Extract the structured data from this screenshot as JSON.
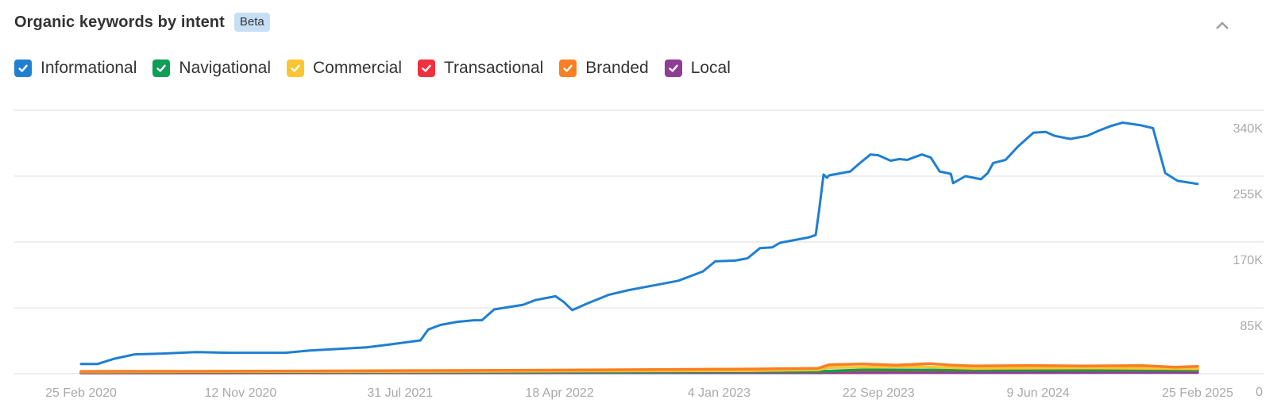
{
  "header": {
    "title": "Organic keywords by intent",
    "badge": "Beta",
    "collapse_icon": "chevron-up-icon"
  },
  "legend": [
    {
      "key": "informational",
      "label": "Informational",
      "color": "#1f7fd1",
      "checked": true
    },
    {
      "key": "navigational",
      "label": "Navigational",
      "color": "#0f9d58",
      "checked": true
    },
    {
      "key": "commercial",
      "label": "Commercial",
      "color": "#fbc531",
      "checked": true
    },
    {
      "key": "transactional",
      "label": "Transactional",
      "color": "#f0303f",
      "checked": true
    },
    {
      "key": "branded",
      "label": "Branded",
      "color": "#f97f24",
      "checked": true
    },
    {
      "key": "local",
      "label": "Local",
      "color": "#8e3d96",
      "checked": true
    }
  ],
  "chart_data": {
    "type": "line",
    "title": "Organic keywords by intent",
    "xlabel": "",
    "ylabel": "",
    "ylim": [
      0,
      425000
    ],
    "yticks": [
      0,
      85000,
      170000,
      255000,
      340000
    ],
    "ytick_labels": [
      "0",
      "85K",
      "170K",
      "255K",
      "340K"
    ],
    "y_axis_position": "right",
    "grid": true,
    "legend_position": "top",
    "x_range": [
      "25 Feb 2020",
      "25 Feb 2025"
    ],
    "xtick_labels": [
      "25 Feb 2020",
      "12 Nov 2020",
      "31 Jul 2021",
      "18 Apr 2022",
      "4 Jan 2023",
      "22 Sep 2023",
      "9 Jun 2024",
      "25 Feb 2025"
    ],
    "x_note": "x values are fractions of the time span from 25 Feb 2020 (0) to 25 Feb 2025 (1)",
    "series": [
      {
        "name": "Informational",
        "color": "#1f7fd1",
        "x": [
          0,
          0.015,
          0.029,
          0.048,
          0.073,
          0.103,
          0.132,
          0.183,
          0.205,
          0.256,
          0.278,
          0.304,
          0.311,
          0.322,
          0.337,
          0.352,
          0.359,
          0.37,
          0.396,
          0.407,
          0.425,
          0.432,
          0.44,
          0.454,
          0.473,
          0.491,
          0.513,
          0.535,
          0.557,
          0.568,
          0.586,
          0.597,
          0.608,
          0.619,
          0.626,
          0.652,
          0.658,
          0.661,
          0.665,
          0.668,
          0.67,
          0.689,
          0.696,
          0.707,
          0.714,
          0.725,
          0.733,
          0.74,
          0.753,
          0.761,
          0.769,
          0.779,
          0.781,
          0.792,
          0.806,
          0.812,
          0.817,
          0.828,
          0.839,
          0.853,
          0.864,
          0.872,
          0.886,
          0.901,
          0.912,
          0.923,
          0.933,
          0.948,
          0.96,
          0.971,
          0.982,
          1.0
        ],
        "values": [
          12600,
          12600,
          19000,
          25000,
          26000,
          28000,
          27000,
          27000,
          30000,
          34000,
          38000,
          43000,
          57000,
          63000,
          67000,
          69000,
          69000,
          83000,
          89000,
          95000,
          100000,
          93000,
          82000,
          91000,
          102000,
          108000,
          114000,
          120000,
          132000,
          145000,
          146000,
          149000,
          162000,
          163000,
          169000,
          176000,
          179000,
          211000,
          257000,
          253000,
          256000,
          261000,
          270000,
          283000,
          282000,
          275000,
          277000,
          276000,
          283000,
          279000,
          261000,
          258000,
          246000,
          255000,
          251000,
          259000,
          272000,
          276000,
          293000,
          311000,
          312000,
          307000,
          303000,
          307000,
          314000,
          320000,
          324000,
          321000,
          317000,
          259000,
          249000,
          245000
        ]
      },
      {
        "name": "Branded",
        "color": "#f97f24",
        "x": [
          0,
          0.2,
          0.4,
          0.6,
          0.66,
          0.67,
          0.7,
          0.73,
          0.76,
          0.78,
          0.8,
          0.85,
          0.9,
          0.95,
          0.98,
          1.0
        ],
        "values": [
          3000,
          3500,
          4500,
          6000,
          7000,
          11500,
          12500,
          11000,
          13000,
          11000,
          10000,
          10500,
          10000,
          10500,
          8500,
          9500
        ]
      },
      {
        "name": "Commercial",
        "color": "#fbc531",
        "x": [
          0,
          0.3,
          0.6,
          0.66,
          0.67,
          0.75,
          0.8,
          0.9,
          1.0
        ],
        "values": [
          2500,
          3000,
          4000,
          5000,
          8000,
          9000,
          7000,
          7500,
          6500
        ]
      },
      {
        "name": "Navigational",
        "color": "#0f9d58",
        "x": [
          0,
          0.5,
          0.66,
          0.7,
          0.8,
          1.0
        ],
        "values": [
          2000,
          2500,
          3000,
          5000,
          4500,
          4500
        ]
      },
      {
        "name": "Transactional",
        "color": "#f0303f",
        "x": [
          0,
          0.4,
          0.66,
          0.7,
          0.85,
          1.0
        ],
        "values": [
          1800,
          2200,
          2800,
          3800,
          4000,
          3800
        ]
      },
      {
        "name": "Local",
        "color": "#8e3d96",
        "x": [
          0,
          0.5,
          1.0
        ],
        "values": [
          1000,
          1200,
          1500
        ]
      }
    ]
  }
}
